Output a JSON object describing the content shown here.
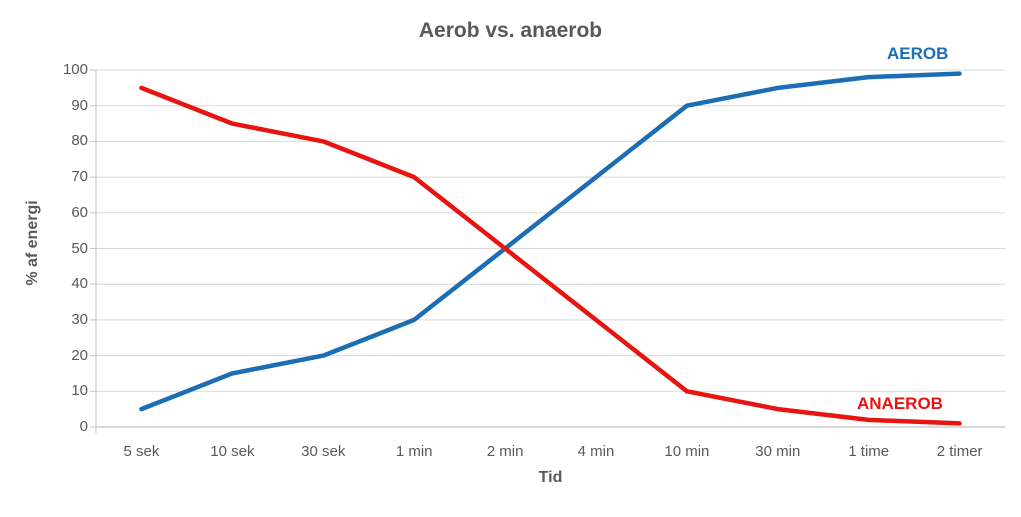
{
  "chart_data": {
    "type": "line",
    "title": "Aerob vs. anaerob",
    "xlabel": "Tid",
    "ylabel": "% af energi",
    "categories": [
      "5 sek",
      "10 sek",
      "30 sek",
      "1 min",
      "2 min",
      "4 min",
      "10 min",
      "30 min",
      "1 time",
      "2 timer"
    ],
    "series": [
      {
        "name": "AEROB",
        "color": "#1b6eb5",
        "values": [
          5,
          15,
          20,
          30,
          50,
          70,
          90,
          95,
          98,
          99
        ]
      },
      {
        "name": "ANAEROB",
        "color": "#e8140f",
        "values": [
          95,
          85,
          80,
          70,
          50,
          30,
          10,
          5,
          2,
          1
        ]
      }
    ],
    "ylim": [
      0,
      100
    ],
    "yticks": [
      0,
      10,
      20,
      30,
      40,
      50,
      60,
      70,
      80,
      90,
      100
    ],
    "grid": "horizontal",
    "legend_position": "inline-end-labels",
    "colors": {
      "title_text": "#595959",
      "axis_text": "#595959",
      "gridline": "#d9d9d9",
      "axis_line": "#c3c3c3",
      "background": "#ffffff"
    }
  }
}
